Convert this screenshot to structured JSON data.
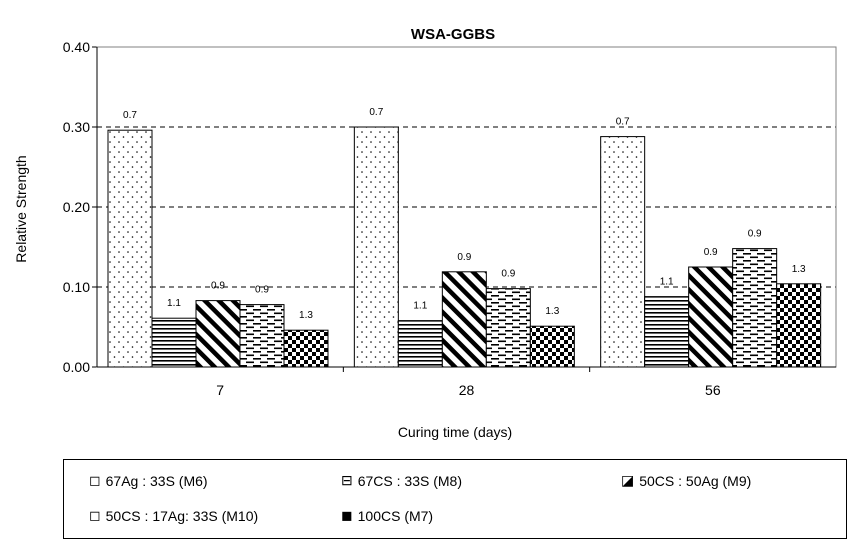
{
  "chart_data": {
    "type": "bar",
    "title": "WSA-GGBS",
    "xlabel": "Curing time (days)",
    "ylabel": "Relative Strength",
    "ylim": [
      0,
      0.4
    ],
    "yticks": [
      "0.00",
      "0.10",
      "0.20",
      "0.30",
      "0.40"
    ],
    "categories": [
      "7",
      "28",
      "56"
    ],
    "gridlines": "horizontal dashed",
    "legend_position": "bottom",
    "series": [
      {
        "name": "67Ag : 33S (M6)",
        "pattern": "dots",
        "values": [
          0.296,
          0.3,
          0.288
        ],
        "labels": [
          "0.7",
          "0.7",
          "0.7"
        ]
      },
      {
        "name": "67CS : 33S (M8)",
        "pattern": "horizontal-lines",
        "values": [
          0.061,
          0.058,
          0.088
        ],
        "labels": [
          "1.1",
          "1.1",
          "1.1"
        ]
      },
      {
        "name": "50CS : 50Ag (M9)",
        "pattern": "diagonal-stripes",
        "values": [
          0.083,
          0.119,
          0.125
        ],
        "labels": [
          "0.9",
          "0.9",
          "0.9"
        ]
      },
      {
        "name": "50CS : 17Ag: 33S (M10)",
        "pattern": "dashed-lines",
        "values": [
          0.078,
          0.098,
          0.148
        ],
        "labels": [
          "0.9",
          "0.9",
          "0.9"
        ]
      },
      {
        "name": "100CS (M7)",
        "pattern": "checkerboard",
        "values": [
          0.046,
          0.051,
          0.104
        ],
        "labels": [
          "1.3",
          "1.3",
          "1.3"
        ]
      }
    ],
    "legend_glyphs": [
      "◻",
      "⊟",
      "◪",
      "◻",
      "◼"
    ]
  }
}
